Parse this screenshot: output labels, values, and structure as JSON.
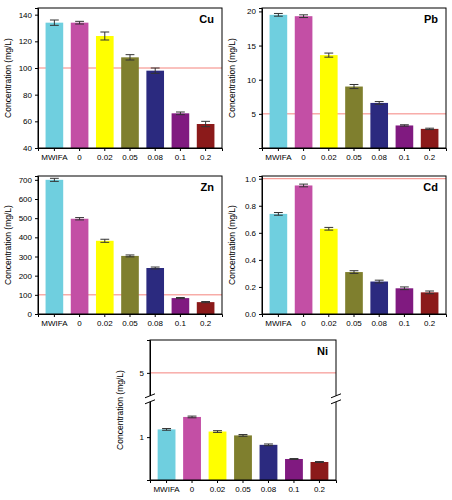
{
  "chart_data": [
    {
      "type": "bar",
      "title": "Cu",
      "y_label": "Concentration (mg/L)",
      "categories": [
        "MWIFA",
        "0",
        "0.02",
        "0.05",
        "0.08",
        "0.1",
        "0.2"
      ],
      "values": [
        134,
        134,
        124,
        108,
        98,
        66,
        58
      ],
      "errors": [
        2,
        1,
        3,
        2,
        2,
        1,
        2
      ],
      "colors": [
        "#6fcfdf",
        "#c34fa5",
        "#ffff00",
        "#7f7f2e",
        "#2b2a7f",
        "#801a80",
        "#8b1a1a"
      ],
      "ylim": [
        40,
        145
      ],
      "yticks": [
        40,
        60,
        80,
        100,
        120,
        140
      ],
      "threshold": 100
    },
    {
      "type": "bar",
      "title": "Pb",
      "y_label": "Concentration (mg/L)",
      "categories": [
        "MWIFA",
        "0",
        "0.02",
        "0.05",
        "0.08",
        "0.1",
        "0.2"
      ],
      "values": [
        19.5,
        19.3,
        13.6,
        9.0,
        6.6,
        3.3,
        2.8
      ],
      "errors": [
        0.2,
        0.2,
        0.3,
        0.3,
        0.2,
        0.1,
        0.1
      ],
      "colors": [
        "#6fcfdf",
        "#c34fa5",
        "#ffff00",
        "#7f7f2e",
        "#2b2a7f",
        "#801a80",
        "#8b1a1a"
      ],
      "ylim": [
        0,
        20.5
      ],
      "yticks": [
        5,
        10,
        15,
        20
      ],
      "threshold": 5
    },
    {
      "type": "bar",
      "title": "Zn",
      "y_label": "Concentration (mg/L)",
      "categories": [
        "MWIFA",
        "0",
        "0.02",
        "0.05",
        "0.08",
        "0.1",
        "0.2"
      ],
      "values": [
        700,
        497,
        382,
        303,
        240,
        83,
        62
      ],
      "errors": [
        8,
        6,
        8,
        5,
        5,
        3,
        3
      ],
      "colors": [
        "#6fcfdf",
        "#c34fa5",
        "#ffff00",
        "#7f7f2e",
        "#2b2a7f",
        "#801a80",
        "#8b1a1a"
      ],
      "ylim": [
        0,
        720
      ],
      "yticks": [
        0,
        100,
        200,
        300,
        400,
        500,
        600,
        700
      ],
      "threshold": 100
    },
    {
      "type": "bar",
      "title": "Cd",
      "y_label": "Concentration (mg/L)",
      "categories": [
        "MWIFA",
        "0",
        "0.02",
        "0.05",
        "0.08",
        "0.1",
        "0.2"
      ],
      "values": [
        0.74,
        0.95,
        0.63,
        0.31,
        0.24,
        0.19,
        0.16
      ],
      "errors": [
        0.01,
        0.01,
        0.01,
        0.01,
        0.01,
        0.01,
        0.01
      ],
      "colors": [
        "#6fcfdf",
        "#c34fa5",
        "#ffff00",
        "#7f7f2e",
        "#2b2a7f",
        "#801a80",
        "#8b1a1a"
      ],
      "ylim": [
        0,
        1.02
      ],
      "yticks": [
        {
          "value": 0,
          "label": "0.0"
        },
        0.2,
        0.4,
        0.6,
        0.8,
        {
          "value": 1,
          "label": "1.0"
        }
      ],
      "threshold": 1
    },
    {
      "type": "bar",
      "title": "Ni",
      "y_label": "Concentration (mg/L)",
      "categories": [
        "MWIFA",
        "0",
        "0.02",
        "0.05",
        "0.08",
        "0.1",
        "0.2"
      ],
      "values": [
        1.18,
        1.47,
        1.13,
        1.04,
        0.82,
        0.49,
        0.42
      ],
      "errors": [
        0.02,
        0.02,
        0.02,
        0.02,
        0.02,
        0.01,
        0.01
      ],
      "colors": [
        "#6fcfdf",
        "#c34fa5",
        "#ffff00",
        "#7f7f2e",
        "#2b2a7f",
        "#801a80",
        "#8b1a1a"
      ],
      "ylim": [
        0,
        5.6
      ],
      "y_break": [
        1.8,
        4.6
      ],
      "yticks": [
        1,
        5
      ],
      "threshold": 5
    }
  ]
}
